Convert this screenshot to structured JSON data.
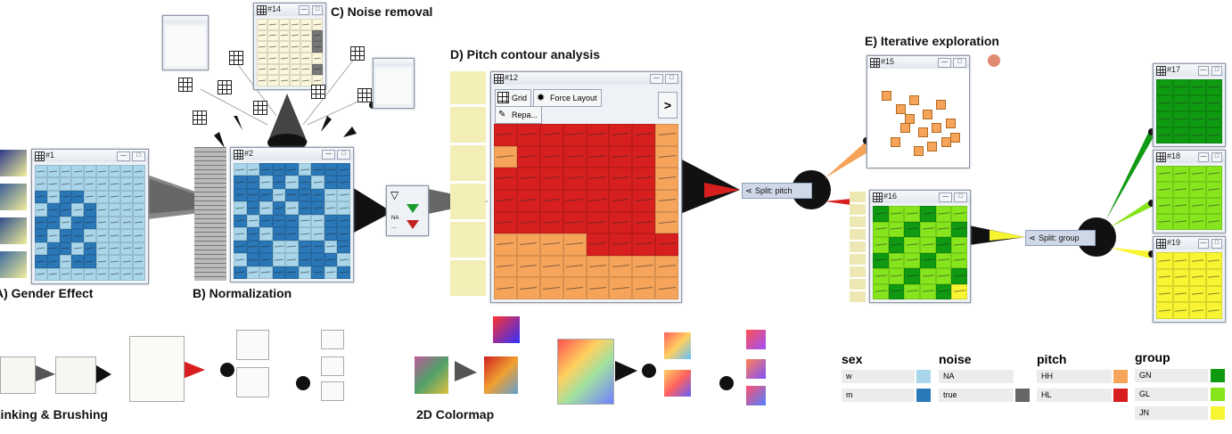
{
  "panels": {
    "a": {
      "label": "A) Gender Effect"
    },
    "b": {
      "label": "B) Normalization"
    },
    "c": {
      "label": "C) Noise removal"
    },
    "d": {
      "label": "D) Pitch contour analysis"
    },
    "e": {
      "label": "E) Iterative exploration"
    },
    "linking": {
      "label": "Linking & Brushing"
    },
    "colormap": {
      "label": "2D Colormap"
    }
  },
  "windows": {
    "w1": {
      "title": "#1"
    },
    "w2": {
      "title": "#2"
    },
    "w14": {
      "title": "#14"
    },
    "w12": {
      "title": "#12"
    },
    "w15": {
      "title": "#15"
    },
    "w16": {
      "title": "#16"
    },
    "w17": {
      "title": "#17"
    },
    "w18": {
      "title": "#18"
    },
    "w19": {
      "title": "#19"
    }
  },
  "toolbar": {
    "grid_label": "Grid",
    "force_label": "Force Layout",
    "repaint_label": "Repa...",
    "next_glyph": ">"
  },
  "filter": {
    "na_label": "NA",
    "dots": "..."
  },
  "splits": {
    "pitch": {
      "label": "Split: pitch"
    },
    "group": {
      "label": "Split: group"
    }
  },
  "legend": {
    "sex": {
      "title": "sex",
      "items": [
        {
          "label": "w",
          "color": "#a9d6ea"
        },
        {
          "label": "m",
          "color": "#2b78b8"
        }
      ]
    },
    "noise": {
      "title": "noise",
      "items": [
        {
          "label": "NA",
          "color": "#ffffff"
        },
        {
          "label": "true",
          "color": "#666666"
        }
      ]
    },
    "pitch": {
      "title": "pitch",
      "items": [
        {
          "label": "HH",
          "color": "#f5a45a"
        },
        {
          "label": "HL",
          "color": "#d81f1f"
        }
      ]
    },
    "group": {
      "title": "group",
      "items": [
        {
          "label": "GN",
          "color": "#0f9a12"
        },
        {
          "label": "GL",
          "color": "#86e51c"
        },
        {
          "label": "JN",
          "color": "#f7f531"
        }
      ]
    }
  },
  "window_buttons": {
    "minimize": "—",
    "restore": "□"
  },
  "colors": {
    "light_blue": "#a9d6ea",
    "dark_blue": "#2b78b8",
    "red": "#d81f1f",
    "orange": "#f5a45a",
    "dark_green": "#0f9a12",
    "light_green": "#86e51c",
    "yellow": "#f7f531"
  }
}
